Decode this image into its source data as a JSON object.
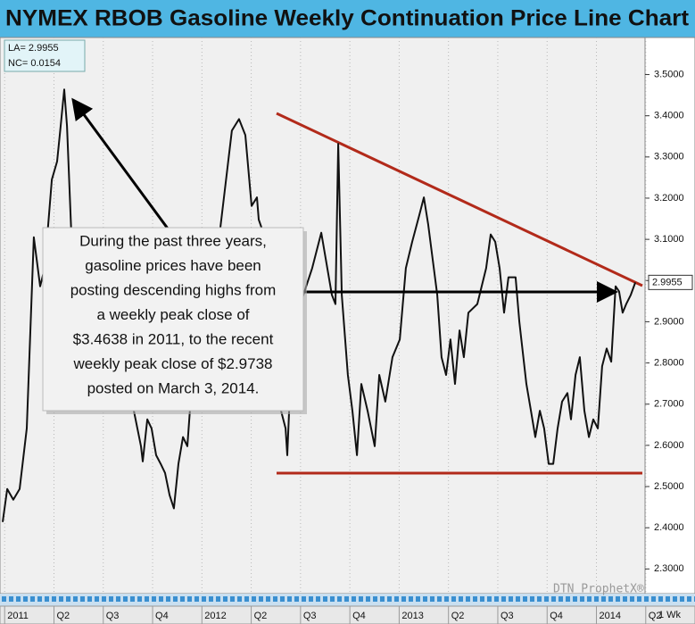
{
  "chart_data": {
    "type": "line",
    "title": "NYMEX RBOB Gasoline Weekly Continuation Price Line Chart",
    "info": [
      "LA= 2.9955",
      "NC= 0.0154"
    ],
    "annotation": [
      "During the past three years,",
      "gasoline prices have been",
      "posting descending highs from",
      "a weekly peak close of",
      "$3.4638 in 2011, to the recent",
      "weekly peak close of $2.9738",
      "posted on March 3, 2014."
    ],
    "last_price": 2.9955,
    "watermark": "DTN ProphetX®",
    "interval": "1 Wk",
    "color": "#111111",
    "grid": true,
    "xlim": [
      2010.99,
      2014.26
    ],
    "xticks": [
      2011,
      {
        "value": 2011.25,
        "label": "Q2"
      },
      {
        "value": 2011.5,
        "label": "Q3"
      },
      {
        "value": 2011.75,
        "label": "Q4"
      },
      2012,
      {
        "value": 2012.25,
        "label": "Q2"
      },
      {
        "value": 2012.5,
        "label": "Q3"
      },
      {
        "value": 2012.75,
        "label": "Q4"
      },
      2013,
      {
        "value": 2013.25,
        "label": "Q2"
      },
      {
        "value": 2013.5,
        "label": "Q3"
      },
      {
        "value": 2013.75,
        "label": "Q4"
      },
      2014,
      {
        "value": 2014.25,
        "label": "Q2"
      }
    ],
    "ylim": [
      2.24,
      3.59
    ],
    "yticks": [
      {
        "value": 2.3,
        "label": "2.3000"
      },
      {
        "value": 2.4,
        "label": "2.4000"
      },
      {
        "value": 2.5,
        "label": "2.5000"
      },
      {
        "value": 2.6,
        "label": "2.6000"
      },
      {
        "value": 2.7,
        "label": "2.7000"
      },
      {
        "value": 2.8,
        "label": "2.8000"
      },
      {
        "value": 2.9,
        "label": "2.9000"
      },
      {
        "value": 3.0,
        "label": "3.0000"
      },
      {
        "value": 3.1,
        "label": "3.1000"
      },
      {
        "value": 3.2,
        "label": "3.2000"
      },
      {
        "value": 3.3,
        "label": "3.3000"
      },
      {
        "value": 3.4,
        "label": "3.4000"
      },
      {
        "value": 3.5,
        "label": "3.5000"
      }
    ],
    "x": [
      2010.99,
      2011.013,
      2011.044,
      2011.076,
      2011.112,
      2011.148,
      2011.18,
      2011.203,
      2011.239,
      2011.266,
      2011.284,
      2011.302,
      2011.316,
      2011.338,
      2011.383,
      2011.429,
      2011.474,
      2011.519,
      2011.564,
      2011.61,
      2011.655,
      2011.691,
      2011.7,
      2011.723,
      2011.745,
      2011.768,
      2011.791,
      2011.813,
      2011.836,
      2011.858,
      2011.881,
      2011.904,
      2011.926,
      2011.949,
      2011.971,
      2011.994,
      2012.039,
      2012.085,
      2012.152,
      2012.188,
      2012.22,
      2012.252,
      2012.279,
      2012.288,
      2012.311,
      2012.333,
      2012.356,
      2012.378,
      2012.401,
      2012.424,
      2012.433,
      2012.446,
      2012.469,
      2012.492,
      2012.514,
      2012.559,
      2012.605,
      2012.659,
      2012.677,
      2012.691,
      2012.709,
      2012.74,
      2012.763,
      2012.786,
      2012.808,
      2012.84,
      2012.876,
      2012.899,
      2012.93,
      2012.966,
      2013.003,
      2013.034,
      2013.066,
      2013.102,
      2013.125,
      2013.147,
      2013.17,
      2013.193,
      2013.215,
      2013.238,
      2013.26,
      2013.283,
      2013.306,
      2013.328,
      2013.351,
      2013.396,
      2013.441,
      2013.464,
      2013.487,
      2013.509,
      2013.532,
      2013.554,
      2013.59,
      2013.609,
      2013.645,
      2013.668,
      2013.69,
      2013.713,
      2013.735,
      2013.758,
      2013.781,
      2013.803,
      2013.826,
      2013.853,
      2013.871,
      2013.894,
      2013.916,
      2013.939,
      2013.962,
      2013.984,
      2014.007,
      2014.029,
      2014.052,
      2014.075,
      2014.097,
      2014.115,
      2014.133,
      2014.151,
      2014.174,
      2014.197
    ],
    "values": [
      2.414,
      2.494,
      2.468,
      2.494,
      2.641,
      3.105,
      2.986,
      3.03,
      3.245,
      3.289,
      3.375,
      3.4638,
      3.375,
      3.116,
      3.03,
      2.965,
      2.9,
      2.857,
      2.814,
      2.771,
      2.684,
      2.598,
      2.561,
      2.663,
      2.641,
      2.576,
      2.555,
      2.533,
      2.479,
      2.447,
      2.555,
      2.62,
      2.598,
      2.749,
      2.857,
      2.965,
      3.03,
      3.094,
      3.364,
      3.392,
      3.353,
      3.181,
      3.202,
      3.148,
      3.116,
      3.03,
      2.857,
      2.771,
      2.684,
      2.641,
      2.576,
      2.727,
      2.857,
      2.922,
      2.965,
      3.03,
      3.116,
      2.965,
      2.943,
      3.332,
      2.965,
      2.771,
      2.684,
      2.576,
      2.749,
      2.684,
      2.598,
      2.771,
      2.706,
      2.814,
      2.857,
      3.03,
      3.094,
      3.159,
      3.202,
      3.137,
      3.051,
      2.965,
      2.814,
      2.771,
      2.857,
      2.749,
      2.879,
      2.814,
      2.922,
      2.943,
      3.03,
      3.112,
      3.094,
      3.03,
      2.922,
      3.008,
      3.008,
      2.9,
      2.749,
      2.684,
      2.62,
      2.684,
      2.641,
      2.555,
      2.555,
      2.641,
      2.706,
      2.727,
      2.663,
      2.771,
      2.814,
      2.684,
      2.62,
      2.663,
      2.641,
      2.792,
      2.835,
      2.803,
      2.986,
      2.9738,
      2.922,
      2.943,
      2.965,
      2.9955
    ]
  }
}
